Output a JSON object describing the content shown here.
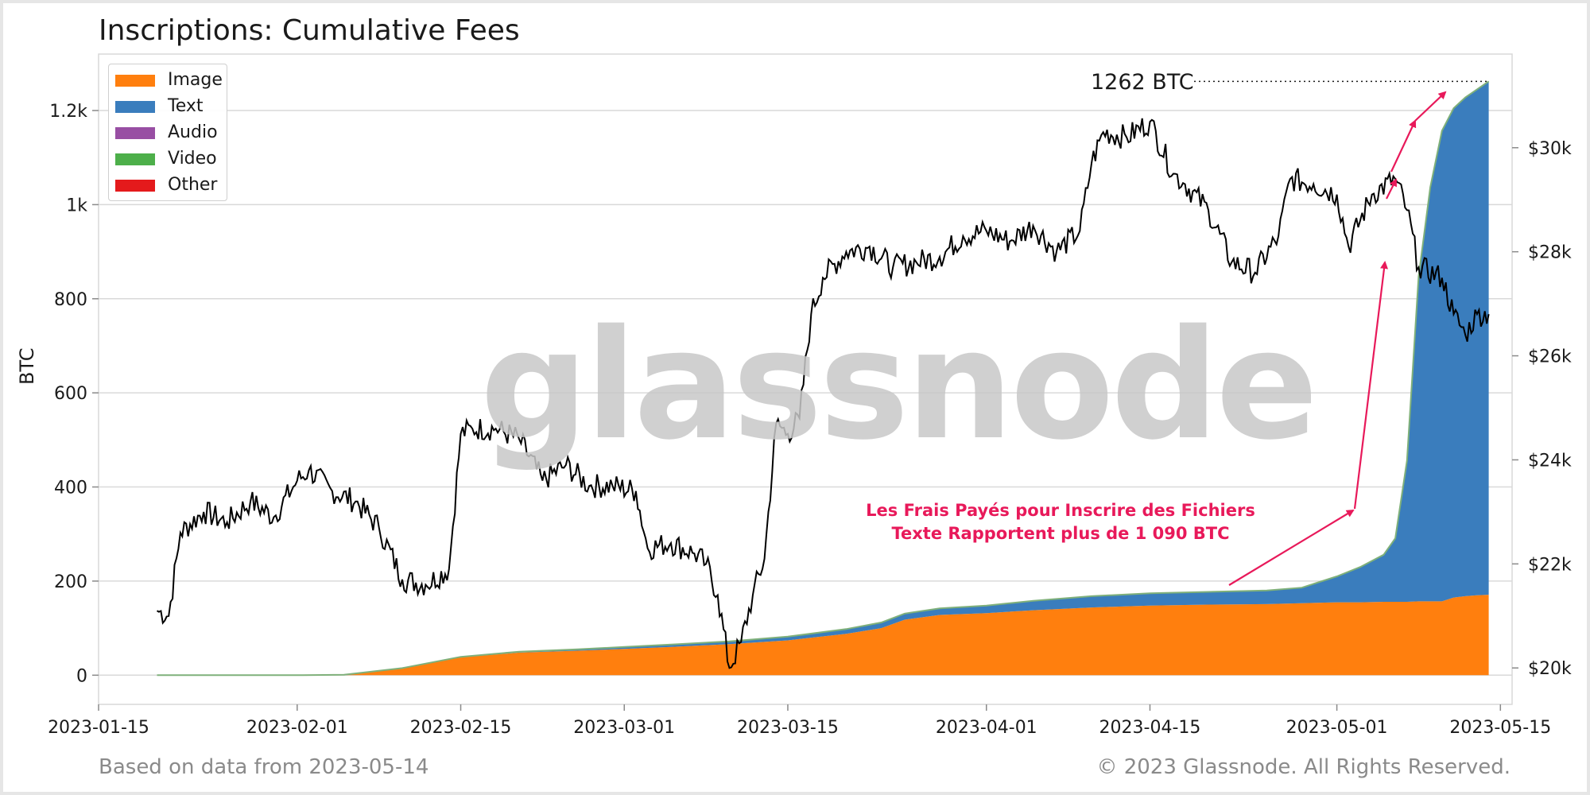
{
  "chart_data": {
    "type": "area",
    "title": "Inscriptions: Cumulative Fees",
    "ylabel": "BTC",
    "ylim": [
      -62,
      1320
    ],
    "yticks": [
      0,
      200,
      400,
      600,
      800,
      1000,
      1200
    ],
    "ytick_labels": [
      "0",
      "200",
      "400",
      "600",
      "800",
      "1k",
      "1.2k"
    ],
    "y2lim": [
      19300,
      31800
    ],
    "y2ticks": [
      20000,
      22000,
      24000,
      26000,
      28000,
      30000
    ],
    "y2tick_labels": [
      "$20k",
      "$22k",
      "$24k",
      "$26k",
      "$28k",
      "$30k"
    ],
    "xlim": [
      "2023-01-15",
      "2023-05-16"
    ],
    "xticks": [
      "2023-01-15",
      "2023-02-01",
      "2023-02-15",
      "2023-03-01",
      "2023-03-15",
      "2023-04-01",
      "2023-04-15",
      "2023-05-01",
      "2023-05-15"
    ],
    "legend_position": "top-left",
    "grid": true,
    "x": [
      "2023-01-20",
      "2023-01-25",
      "2023-02-01",
      "2023-02-05",
      "2023-02-10",
      "2023-02-15",
      "2023-02-20",
      "2023-02-25",
      "2023-03-01",
      "2023-03-05",
      "2023-03-10",
      "2023-03-15",
      "2023-03-20",
      "2023-03-23",
      "2023-03-25",
      "2023-03-28",
      "2023-04-01",
      "2023-04-05",
      "2023-04-10",
      "2023-04-15",
      "2023-04-20",
      "2023-04-25",
      "2023-04-28",
      "2023-05-01",
      "2023-05-03",
      "2023-05-05",
      "2023-05-06",
      "2023-05-07",
      "2023-05-08",
      "2023-05-09",
      "2023-05-10",
      "2023-05-11",
      "2023-05-12",
      "2023-05-13",
      "2023-05-14"
    ],
    "series": [
      {
        "name": "Image",
        "color": "#ff7f0e",
        "values": [
          0,
          0,
          0,
          1,
          15,
          38,
          48,
          52,
          56,
          60,
          66,
          74,
          88,
          100,
          118,
          128,
          132,
          138,
          144,
          148,
          150,
          151,
          153,
          155,
          155,
          156,
          156,
          156,
          157,
          157,
          157,
          165,
          168,
          170,
          171
        ]
      },
      {
        "name": "Text",
        "color": "#3a7dbd",
        "values": [
          0,
          0,
          0,
          0,
          0,
          1,
          2,
          3,
          4,
          5,
          6,
          8,
          10,
          12,
          13,
          14,
          16,
          20,
          24,
          26,
          27,
          29,
          33,
          55,
          75,
          100,
          135,
          300,
          690,
          880,
          1000,
          1040,
          1060,
          1075,
          1091
        ]
      },
      {
        "name": "Audio",
        "color": "#984ea3",
        "values": [
          0,
          0,
          0,
          0,
          0,
          0,
          0,
          0,
          0,
          0,
          0,
          0,
          0,
          0,
          0,
          0,
          0,
          0,
          0,
          0,
          0,
          0,
          0,
          0,
          0,
          0,
          0,
          0,
          0,
          0,
          0,
          0,
          0,
          0,
          0
        ]
      },
      {
        "name": "Video",
        "color": "#4daf4a",
        "values": [
          0,
          0,
          0,
          0,
          0,
          0,
          0,
          0,
          0,
          0,
          0,
          0,
          0,
          0,
          0,
          0,
          0,
          0,
          0,
          0,
          0,
          0,
          0,
          0,
          0,
          0,
          0,
          0,
          0,
          0,
          0,
          0,
          0,
          0,
          0
        ]
      },
      {
        "name": "Other",
        "color": "#e41a1c",
        "values": [
          0,
          0,
          0,
          0,
          0,
          0,
          0,
          0,
          0,
          0,
          0,
          0,
          0,
          0,
          0,
          0,
          0,
          0,
          0,
          0,
          0,
          0,
          0,
          0,
          0,
          0,
          0,
          0,
          0,
          0,
          0,
          0,
          0,
          0,
          0
        ]
      }
    ],
    "price_series": {
      "color": "#000000",
      "axis": "right",
      "x": [
        "2023-01-20",
        "2023-01-21",
        "2023-01-22",
        "2023-01-24",
        "2023-01-26",
        "2023-01-28",
        "2023-01-30",
        "2023-02-01",
        "2023-02-02",
        "2023-02-04",
        "2023-02-06",
        "2023-02-08",
        "2023-02-10",
        "2023-02-12",
        "2023-02-14",
        "2023-02-15",
        "2023-02-16",
        "2023-02-18",
        "2023-02-20",
        "2023-02-22",
        "2023-02-24",
        "2023-02-26",
        "2023-02-28",
        "2023-03-02",
        "2023-03-03",
        "2023-03-05",
        "2023-03-07",
        "2023-03-08",
        "2023-03-09",
        "2023-03-10",
        "2023-03-11",
        "2023-03-12",
        "2023-03-13",
        "2023-03-14",
        "2023-03-15",
        "2023-03-16",
        "2023-03-17",
        "2023-03-18",
        "2023-03-20",
        "2023-03-22",
        "2023-03-24",
        "2023-03-26",
        "2023-03-28",
        "2023-03-30",
        "2023-04-01",
        "2023-04-03",
        "2023-04-05",
        "2023-04-07",
        "2023-04-09",
        "2023-04-10",
        "2023-04-11",
        "2023-04-13",
        "2023-04-15",
        "2023-04-17",
        "2023-04-18",
        "2023-04-20",
        "2023-04-22",
        "2023-04-24",
        "2023-04-26",
        "2023-04-27",
        "2023-04-29",
        "2023-05-01",
        "2023-05-02",
        "2023-05-04",
        "2023-05-06",
        "2023-05-07",
        "2023-05-08",
        "2023-05-10",
        "2023-05-11",
        "2023-05-12",
        "2023-05-13",
        "2023-05-14"
      ],
      "values": [
        21100,
        21000,
        22600,
        23000,
        22800,
        23200,
        22900,
        23600,
        23800,
        23400,
        23200,
        22700,
        21700,
        21600,
        21900,
        24500,
        24600,
        24600,
        24400,
        23600,
        23900,
        23500,
        23500,
        23400,
        22300,
        22400,
        22200,
        22000,
        21400,
        20000,
        20500,
        21400,
        22100,
        24700,
        24500,
        24800,
        26800,
        27500,
        28000,
        28100,
        27700,
        27800,
        27900,
        28300,
        28400,
        28200,
        28500,
        28000,
        28400,
        29700,
        30300,
        30200,
        30500,
        29500,
        29300,
        28800,
        27800,
        27600,
        28300,
        29400,
        29300,
        29100,
        28100,
        29100,
        29400,
        28800,
        27700,
        27500,
        26800,
        26400,
        26800,
        26800
      ]
    },
    "annotations": [
      {
        "text_lines": [
          "Les Frais Payés pour Inscrire des Fichiers",
          "Texte Rapportent plus de 1 090 BTC"
        ],
        "color": "#e8195a"
      },
      {
        "text": "1262 BTC",
        "value": 1262,
        "date": "2023-05-14"
      }
    ]
  },
  "footer": {
    "left": "Based on data from 2023-05-14",
    "right": "© 2023 Glassnode. All Rights Reserved."
  },
  "watermark": "glassnode"
}
